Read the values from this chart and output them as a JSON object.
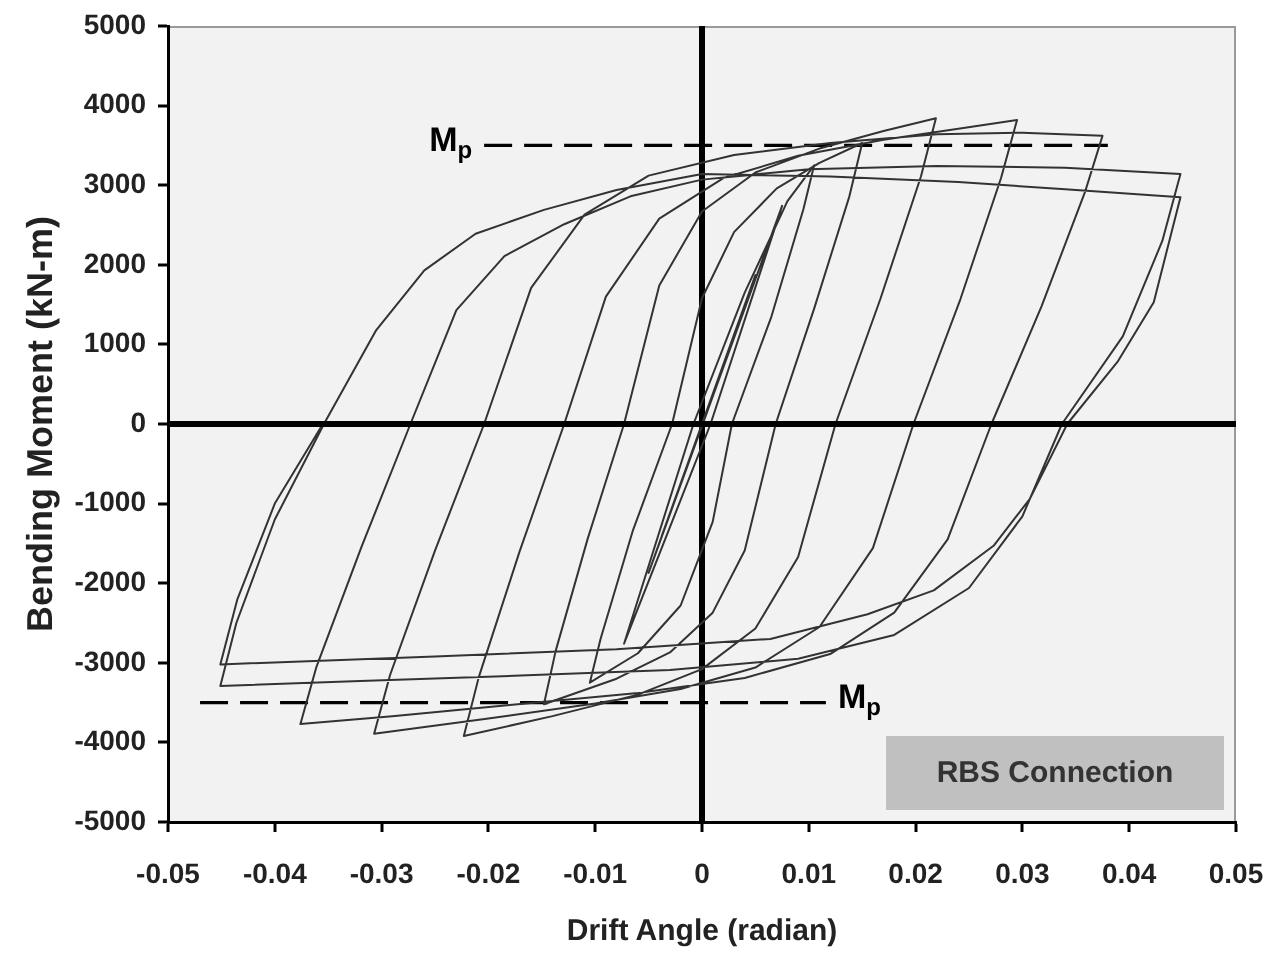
{
  "chart_data": {
    "type": "line",
    "xlabel": "Drift Angle (radian)",
    "ylabel": "Bending Moment (kN-m)",
    "xlim": [
      -0.05,
      0.05
    ],
    "xticks": [
      -0.05,
      -0.04,
      -0.03,
      -0.02,
      -0.01,
      0,
      0.01,
      0.02,
      0.03,
      0.04,
      0.05
    ],
    "ylim": [
      -5000,
      5000
    ],
    "yticks": [
      -5000,
      -4000,
      -3000,
      -2000,
      -1000,
      0,
      1000,
      2000,
      3000,
      4000,
      5000
    ],
    "marker": "none",
    "line_style": "solid",
    "series": [
      {
        "color": "#333333",
        "x": [
          0,
          0.00375,
          -0.00375,
          0.005,
          -0.005,
          0.0075,
          0.0008,
          -0.0073,
          -0.0008,
          0.004,
          0.008,
          0.0105,
          0.0095,
          0.0065,
          0.0028,
          0.001,
          -0.002,
          -0.006,
          -0.0105,
          -0.0095,
          -0.0065,
          -0.0028,
          0,
          0.003,
          0.007,
          0.011,
          0.015,
          0.0138,
          0.0105,
          0.0069,
          0.004,
          0.001,
          -0.003,
          -0.008,
          -0.0148,
          -0.0137,
          -0.0107,
          -0.0073,
          -0.004,
          0,
          0.005,
          0.011,
          0.017,
          0.0219,
          0.0205,
          0.0167,
          0.0125,
          0.009,
          0.005,
          0,
          -0.006,
          -0.014,
          -0.0223,
          -0.0209,
          -0.0171,
          -0.0129,
          -0.009,
          -0.004,
          0.002,
          0.009,
          0.017,
          0.024,
          0.0295,
          0.028,
          0.0242,
          0.0198,
          0.016,
          0.011,
          0.005,
          -0.002,
          -0.01,
          -0.02,
          -0.0307,
          -0.0292,
          -0.025,
          -0.0204,
          -0.016,
          -0.011,
          -0.005,
          0.003,
          0.012,
          0.022,
          0.03,
          0.0375,
          0.0359,
          0.0318,
          0.0271,
          0.023,
          0.018,
          0.012,
          0.004,
          -0.006,
          -0.018,
          -0.029,
          -0.0376,
          -0.0361,
          -0.0319,
          -0.0273,
          -0.023,
          -0.0185,
          -0.0129,
          -0.0067,
          0,
          0.01,
          0.022,
          0.034,
          0.0448,
          0.0431,
          0.0394,
          0.0337,
          0.03,
          0.025,
          0.018,
          0.009,
          -0.003,
          -0.017,
          -0.032,
          -0.0451,
          -0.0436,
          -0.04,
          -0.0354,
          -0.0305,
          -0.026,
          -0.0212,
          -0.0148,
          -0.008,
          0,
          0.012,
          0.024,
          0.034,
          0.0448,
          0.0423,
          0.0389,
          0.0342,
          0.0307,
          0.0273,
          0.0217,
          0.0155,
          0.0064,
          -0.008,
          -0.025,
          -0.0451,
          -0.0435,
          -0.04,
          -0.0355
        ],
        "values": [
          0,
          1400,
          -1400,
          1870,
          -1870,
          2740,
          0,
          -2760,
          0,
          1650,
          2800,
          3250,
          2700,
          1350,
          0,
          -1230,
          -2280,
          -2880,
          -3250,
          -2700,
          -1350,
          0,
          1580,
          2410,
          2960,
          3280,
          3530,
          2860,
          1450,
          0,
          -1590,
          -2370,
          -2870,
          -3200,
          -3520,
          -2850,
          -1440,
          0,
          1740,
          2670,
          3160,
          3460,
          3680,
          3840,
          3110,
          1570,
          0,
          -1670,
          -2570,
          -3080,
          -3400,
          -3670,
          -3920,
          -3180,
          -1610,
          0,
          1600,
          2580,
          3090,
          3370,
          3570,
          3710,
          3820,
          3090,
          1570,
          0,
          -1560,
          -2550,
          -3060,
          -3330,
          -3510,
          -3700,
          -3890,
          -3150,
          -1590,
          0,
          1710,
          2630,
          3120,
          3380,
          3530,
          3640,
          3660,
          3620,
          2930,
          1480,
          0,
          -1450,
          -2370,
          -2890,
          -3190,
          -3380,
          -3530,
          -3670,
          -3770,
          -3050,
          -1550,
          0,
          1430,
          2110,
          2510,
          2860,
          3070,
          3200,
          3240,
          3220,
          3140,
          2300,
          1100,
          0,
          -1160,
          -2060,
          -2650,
          -2950,
          -3090,
          -3160,
          -3230,
          -3290,
          -2500,
          -1200,
          0,
          1180,
          1930,
          2390,
          2690,
          2940,
          3140,
          3110,
          3040,
          2950,
          2850,
          1530,
          780,
          0,
          -940,
          -1530,
          -2090,
          -2390,
          -2700,
          -2830,
          -2920,
          -3020,
          -2200,
          -1000,
          0
        ]
      },
      {
        "name": "M$_{p}$",
        "color": "#000000",
        "line_style": "dashed",
        "x": [
          -0.0204,
          0.038
        ],
        "values": [
          3500,
          3500
        ]
      },
      {
        "name": "M$_{p}$",
        "color": "#000000",
        "line_style": "dashed",
        "x": [
          -0.047,
          0.0116
        ],
        "values": [
          -3500,
          -3500
        ]
      }
    ],
    "ref_lines": [
      {
        "axis": "x",
        "value": 0,
        "color": "#000000"
      },
      {
        "axis": "y",
        "value": 0,
        "color": "#000000"
      }
    ],
    "annotations": [
      "RBS Connection"
    ]
  }
}
